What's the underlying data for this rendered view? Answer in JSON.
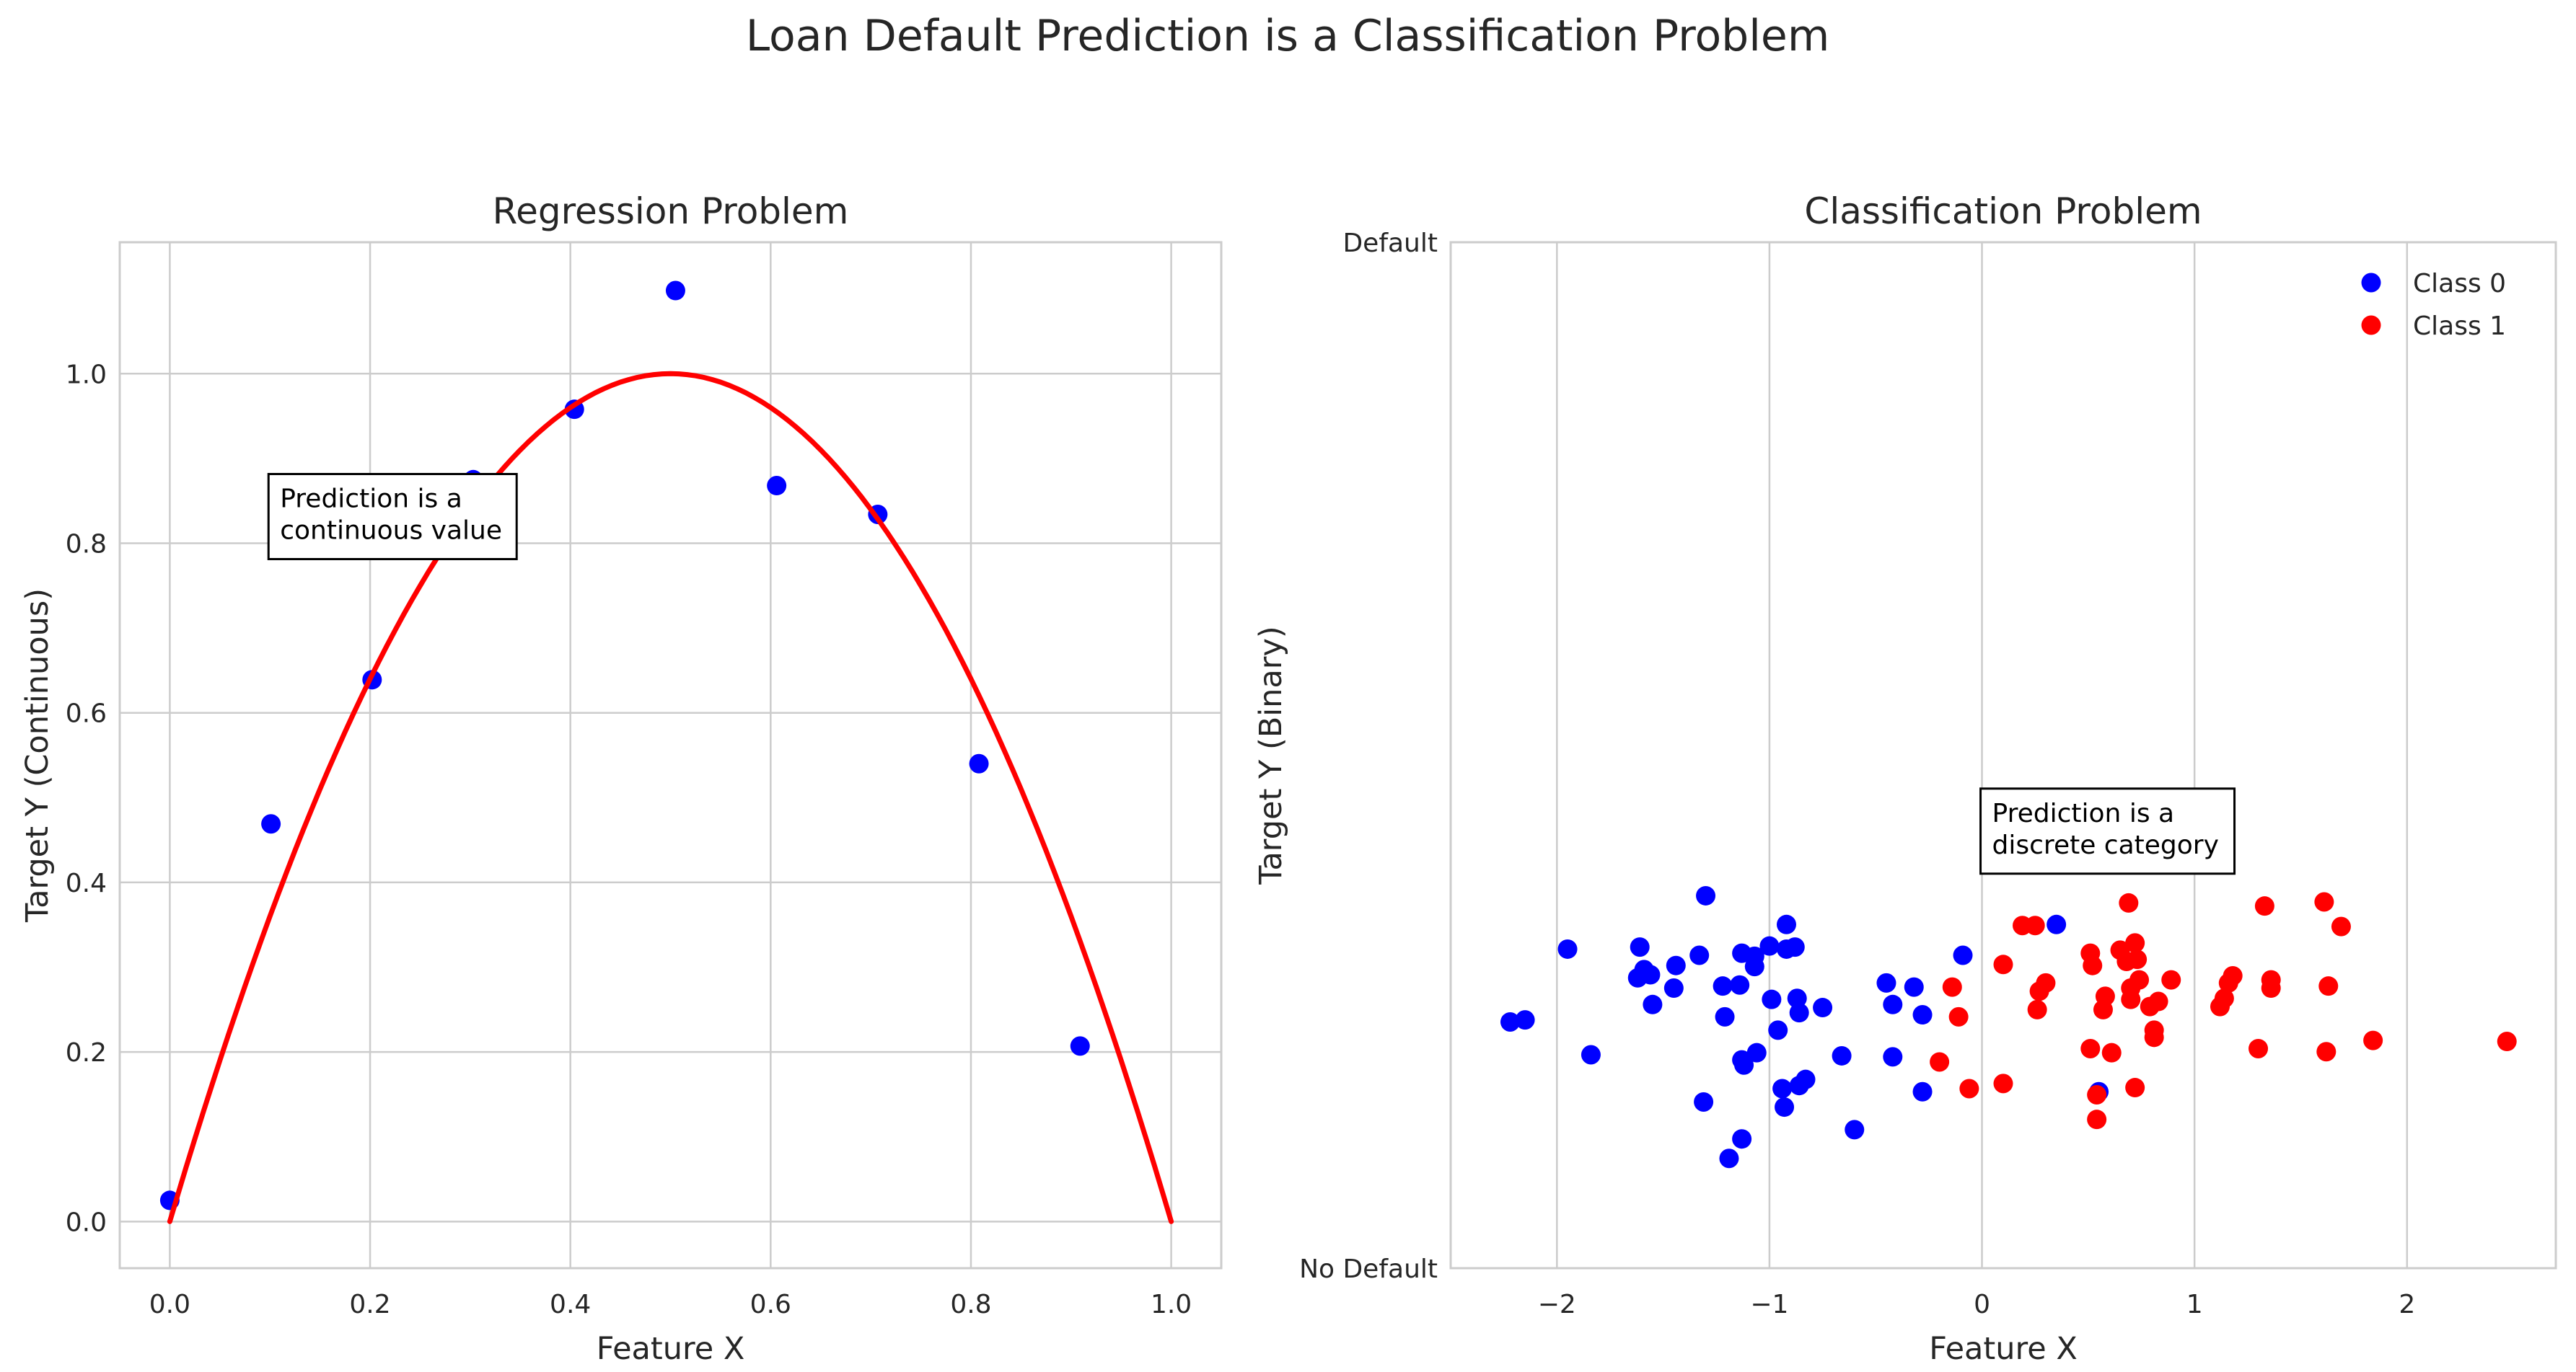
{
  "suptitle": "Loan Default Prediction is a Classification Problem",
  "chart_data": [
    {
      "type": "scatter",
      "title": "Regression Problem",
      "xlabel": "Feature X",
      "ylabel": "Target Y (Continuous)",
      "xlim": [
        -0.05,
        1.05
      ],
      "ylim": [
        -0.055,
        1.155
      ],
      "grid": true,
      "x_ticks": [
        0.0,
        0.2,
        0.4,
        0.6,
        0.8,
        1.0
      ],
      "x_tick_labels": [
        "0.0",
        "0.2",
        "0.4",
        "0.6",
        "0.8",
        "1.0"
      ],
      "y_ticks": [
        0.0,
        0.2,
        0.4,
        0.6,
        0.8,
        1.0
      ],
      "y_tick_labels": [
        "0.0",
        "0.2",
        "0.4",
        "0.6",
        "0.8",
        "1.0"
      ],
      "series": [
        {
          "kind": "scatter",
          "color": "#0000ff",
          "points": [
            [
              0.0,
              0.025
            ],
            [
              0.101,
              0.469
            ],
            [
              0.202,
              0.639
            ],
            [
              0.303,
              0.875
            ],
            [
              0.404,
              0.958
            ],
            [
              0.505,
              1.098
            ],
            [
              0.606,
              0.868
            ],
            [
              0.707,
              0.834
            ],
            [
              0.808,
              0.54
            ],
            [
              0.909,
              0.207
            ]
          ]
        },
        {
          "kind": "line",
          "color": "#ff0000",
          "function": "y = 4x(1-x)",
          "x_range": [
            0.0,
            1.0
          ]
        }
      ],
      "annotation": {
        "lines": [
          "Prediction is a",
          "continuous value"
        ],
        "x": 0.1,
        "y": 0.8
      }
    },
    {
      "type": "scatter",
      "title": "Classification Problem",
      "xlabel": "Feature X",
      "ylabel": "Target Y (Binary)",
      "xlim": [
        -2.5,
        2.7
      ],
      "ylim": [
        0,
        1
      ],
      "grid": "x-only",
      "x_ticks": [
        -2,
        -1,
        0,
        1,
        2
      ],
      "x_tick_labels": [
        "−2",
        "−1",
        "0",
        "1",
        "2"
      ],
      "y_ticks": [
        0,
        1
      ],
      "y_tick_labels": [
        "No Default",
        "Default"
      ],
      "legend": {
        "position": "top-right",
        "entries": [
          {
            "label": "Class 0",
            "color": "#0000ff"
          },
          {
            "label": "Class 1",
            "color": "#ff0000"
          }
        ]
      },
      "series": [
        {
          "name": "Class 0",
          "color": "#0000ff",
          "points": [
            [
              -2.22,
              0.24
            ],
            [
              -2.15,
              0.242
            ],
            [
              -1.84,
              0.208
            ],
            [
              -1.95,
              0.311
            ],
            [
              -1.61,
              0.313
            ],
            [
              -1.62,
              0.283
            ],
            [
              -1.59,
              0.291
            ],
            [
              -1.56,
              0.286
            ],
            [
              -1.55,
              0.257
            ],
            [
              -1.44,
              0.295
            ],
            [
              -1.45,
              0.273
            ],
            [
              -1.33,
              0.305
            ],
            [
              -1.3,
              0.363
            ],
            [
              -1.31,
              0.162
            ],
            [
              -1.22,
              0.275
            ],
            [
              -1.21,
              0.245
            ],
            [
              -1.19,
              0.107
            ],
            [
              -1.14,
              0.276
            ],
            [
              -1.13,
              0.307
            ],
            [
              -1.13,
              0.126
            ],
            [
              -1.13,
              0.203
            ],
            [
              -1.12,
              0.198
            ],
            [
              -1.07,
              0.294
            ],
            [
              -1.07,
              0.304
            ],
            [
              -1.06,
              0.21
            ],
            [
              -1.0,
              0.314
            ],
            [
              -0.99,
              0.262
            ],
            [
              -0.96,
              0.232
            ],
            [
              -0.94,
              0.175
            ],
            [
              -0.93,
              0.157
            ],
            [
              -0.92,
              0.311
            ],
            [
              -0.92,
              0.335
            ],
            [
              -0.88,
              0.313
            ],
            [
              -0.87,
              0.263
            ],
            [
              -0.86,
              0.178
            ],
            [
              -0.86,
              0.249
            ],
            [
              -0.83,
              0.184
            ],
            [
              -0.75,
              0.254
            ],
            [
              -0.66,
              0.207
            ],
            [
              -0.6,
              0.135
            ],
            [
              -0.45,
              0.278
            ],
            [
              -0.42,
              0.257
            ],
            [
              -0.42,
              0.206
            ],
            [
              -0.32,
              0.274
            ],
            [
              -0.28,
              0.247
            ],
            [
              -0.28,
              0.172
            ],
            [
              -0.09,
              0.305
            ],
            [
              0.35,
              0.335
            ],
            [
              0.55,
              0.172
            ]
          ]
        },
        {
          "name": "Class 1",
          "color": "#ff0000",
          "points": [
            [
              -0.2,
              0.201
            ],
            [
              -0.14,
              0.274
            ],
            [
              -0.11,
              0.245
            ],
            [
              -0.06,
              0.175
            ],
            [
              0.1,
              0.18
            ],
            [
              0.1,
              0.296
            ],
            [
              0.19,
              0.334
            ],
            [
              0.25,
              0.334
            ],
            [
              0.26,
              0.252
            ],
            [
              0.27,
              0.27
            ],
            [
              0.3,
              0.278
            ],
            [
              0.51,
              0.214
            ],
            [
              0.51,
              0.307
            ],
            [
              0.52,
              0.295
            ],
            [
              0.54,
              0.169
            ],
            [
              0.54,
              0.145
            ],
            [
              0.57,
              0.252
            ],
            [
              0.58,
              0.265
            ],
            [
              0.61,
              0.21
            ],
            [
              0.65,
              0.31
            ],
            [
              0.68,
              0.299
            ],
            [
              0.69,
              0.356
            ],
            [
              0.7,
              0.273
            ],
            [
              0.7,
              0.262
            ],
            [
              0.72,
              0.317
            ],
            [
              0.72,
              0.176
            ],
            [
              0.73,
              0.301
            ],
            [
              0.74,
              0.281
            ],
            [
              0.79,
              0.255
            ],
            [
              0.81,
              0.225
            ],
            [
              0.81,
              0.232
            ],
            [
              0.83,
              0.26
            ],
            [
              0.89,
              0.281
            ],
            [
              1.12,
              0.255
            ],
            [
              1.14,
              0.263
            ],
            [
              1.16,
              0.278
            ],
            [
              1.18,
              0.285
            ],
            [
              1.3,
              0.214
            ],
            [
              1.33,
              0.353
            ],
            [
              1.36,
              0.273
            ],
            [
              1.36,
              0.281
            ],
            [
              1.61,
              0.357
            ],
            [
              1.62,
              0.211
            ],
            [
              1.63,
              0.275
            ],
            [
              1.69,
              0.333
            ],
            [
              1.84,
              0.222
            ],
            [
              2.47,
              0.221
            ]
          ]
        }
      ],
      "annotation": {
        "lines": [
          "Prediction is a",
          "discrete category"
        ],
        "x": 0.0,
        "y": 0.4
      }
    }
  ]
}
